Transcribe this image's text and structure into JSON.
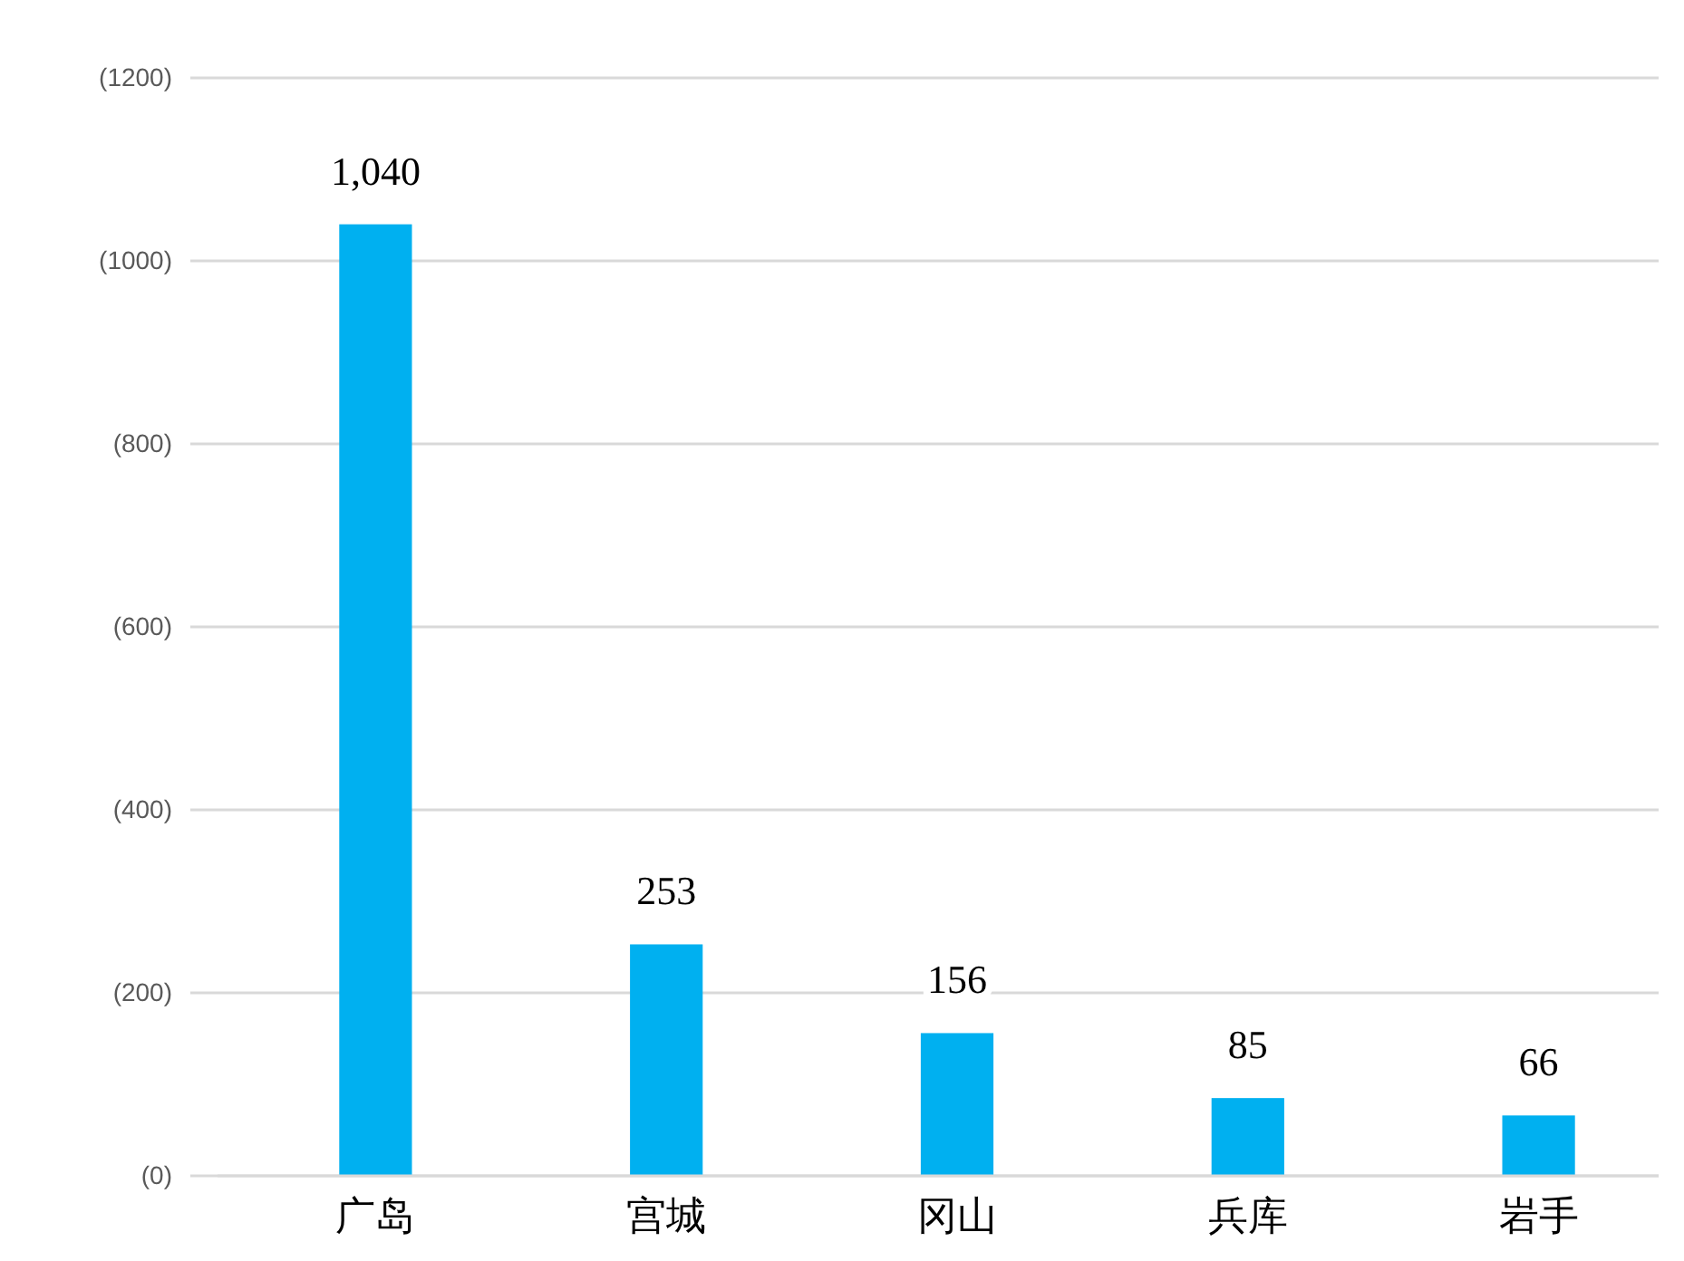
{
  "chart_data": {
    "type": "bar",
    "categories": [
      "广岛",
      "宫城",
      "冈山",
      "兵库",
      "岩手"
    ],
    "values": [
      1040,
      253,
      156,
      85,
      66
    ],
    "value_labels": [
      "1,040",
      "253",
      "156",
      "85",
      "66"
    ],
    "color": "#00b0f0",
    "ylim": [
      0,
      1200
    ],
    "yticks": [
      {
        "value": 0,
        "label": "(0)"
      },
      {
        "value": 200,
        "label": "(200)"
      },
      {
        "value": 400,
        "label": "(400)"
      },
      {
        "value": 600,
        "label": "(600)"
      },
      {
        "value": 800,
        "label": "(800)"
      },
      {
        "value": 1000,
        "label": "(1000)"
      },
      {
        "value": 1200,
        "label": "(1200)"
      }
    ],
    "grid": "y"
  }
}
